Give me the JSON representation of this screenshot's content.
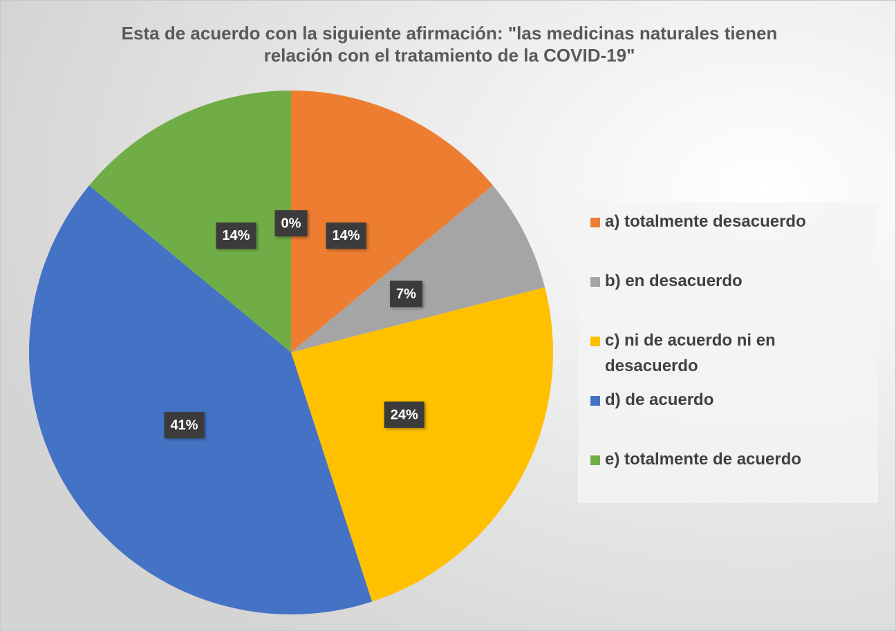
{
  "chart_data": {
    "type": "pie",
    "title": "Esta de acuerdo con la siguiente afirmación: \"las medicinas naturales tienen relación con el tratamiento de la COVID-19\"",
    "categories": [
      "a) totalmente desacuerdo",
      "b) en desacuerdo",
      "c) ni de acuerdo ni en desacuerdo",
      "d) de acuerdo",
      "e) totalmente de acuerdo",
      null
    ],
    "values": [
      14,
      7,
      24,
      41,
      14,
      0
    ],
    "value_labels": [
      "14%",
      "7%",
      "24%",
      "41%",
      "14%",
      "0%"
    ],
    "colors": [
      "#ed7d31",
      "#a5a5a5",
      "#ffc000",
      "#4472c4",
      "#70ad47"
    ],
    "legend": "right"
  }
}
